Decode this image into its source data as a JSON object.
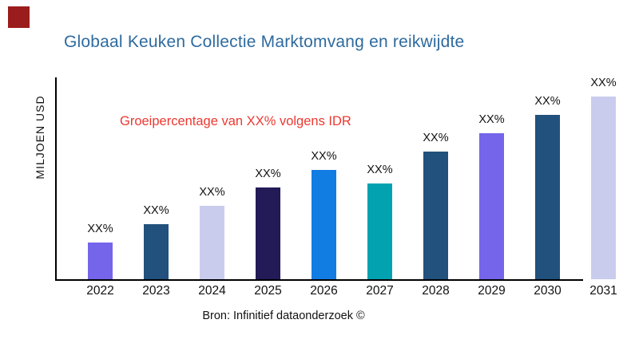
{
  "logo": {
    "color": "#9B1C1C"
  },
  "title": {
    "text": "Globaal Keuken Collectie Marktomvang en reikwijdte",
    "color": "#2E6A9E"
  },
  "annotation": {
    "text": "Groeipercentage van XX% volgens IDR",
    "color": "#ED3830"
  },
  "footer": {
    "text": "Bron: Infinitief dataonderzoek ©"
  },
  "chart_data": {
    "type": "bar",
    "title": "Globaal Keuken Collectie Marktomvang en reikwijdte",
    "xlabel": "",
    "ylabel": "MILJOEN USD",
    "value_axis_ticks_visible": false,
    "grid": false,
    "legend": "none",
    "categories": [
      "2022",
      "2023",
      "2024",
      "2025",
      "2026",
      "2027",
      "2028",
      "2029",
      "2030",
      "2031"
    ],
    "bar_value_labels": [
      "XX%",
      "XX%",
      "XX%",
      "XX%",
      "XX%",
      "XX%",
      "XX%",
      "XX%",
      "XX%",
      "XX%"
    ],
    "relative_values_pct_of_max": [
      20,
      30,
      40,
      50,
      60,
      52.5,
      70,
      80,
      90,
      100
    ],
    "bar_colors": [
      "#7465EA",
      "#21517C",
      "#CACCEE",
      "#221B58",
      "#117CE2",
      "#02A2B0",
      "#21517C",
      "#7465EA",
      "#21517C",
      "#CACCEE"
    ],
    "annotation": "Groeipercentage van XX% volgens IDR",
    "source": "Bron: Infinitief dataonderzoek ©"
  }
}
